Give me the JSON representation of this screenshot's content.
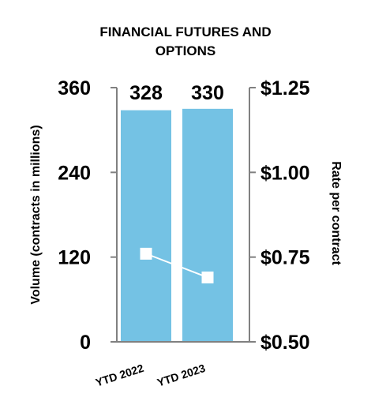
{
  "chart_data": {
    "type": "bar",
    "title_lines": [
      "FINANCIAL FUTURES AND",
      "OPTIONS"
    ],
    "categories": [
      "YTD 2022",
      "YTD 2023"
    ],
    "values": [
      328,
      330
    ],
    "value_labels": [
      "328",
      "330"
    ],
    "ylabel": "Volume (contracts in millions)",
    "ylim": [
      0,
      360
    ],
    "yticks": [
      0,
      120,
      240,
      360
    ],
    "ytick_labels": [
      "0",
      "120",
      "240",
      "360"
    ],
    "y2label": "Rate per contract",
    "y2lim": [
      0.5,
      1.25
    ],
    "y2ticks": [
      0.5,
      0.75,
      1.0,
      1.25
    ],
    "y2tick_labels": [
      "$0.50",
      "$0.75",
      "$1.00",
      "$1.25"
    ],
    "line_series": {
      "values": [
        0.76,
        0.69
      ],
      "axis": "right"
    },
    "bar_color": "#74C2E4",
    "line_color": "#ffffff",
    "axis_color": "#808080",
    "grid": false,
    "legend": "none"
  }
}
